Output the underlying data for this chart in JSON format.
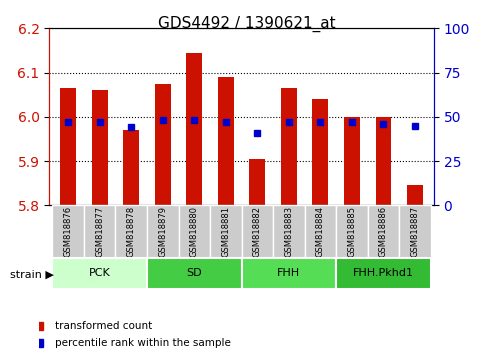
{
  "title": "GDS4492 / 1390621_at",
  "samples": [
    "GSM818876",
    "GSM818877",
    "GSM818878",
    "GSM818879",
    "GSM818880",
    "GSM818881",
    "GSM818882",
    "GSM818883",
    "GSM818884",
    "GSM818885",
    "GSM818886",
    "GSM818887"
  ],
  "transformed_counts": [
    6.065,
    6.06,
    5.97,
    6.075,
    6.145,
    6.09,
    5.905,
    6.065,
    6.04,
    6.0,
    6.0,
    5.845
  ],
  "percentile_ranks": [
    47,
    47,
    44,
    48,
    48,
    47,
    41,
    47,
    47,
    47,
    46,
    45
  ],
  "ylim_left": [
    5.8,
    6.2
  ],
  "ylim_right": [
    0,
    100
  ],
  "yticks_left": [
    5.8,
    5.9,
    6.0,
    6.1,
    6.2
  ],
  "yticks_right": [
    0,
    25,
    50,
    75,
    100
  ],
  "bar_color": "#cc1100",
  "dot_color": "#0000cc",
  "groups": [
    {
      "label": "PCK",
      "start": 0,
      "end": 3,
      "color": "#ccffcc"
    },
    {
      "label": "SD",
      "start": 3,
      "end": 6,
      "color": "#44cc44"
    },
    {
      "label": "FHH",
      "start": 6,
      "end": 9,
      "color": "#55dd55"
    },
    {
      "label": "FHH.Pkhd1",
      "start": 9,
      "end": 12,
      "color": "#33bb33"
    }
  ],
  "strain_label": "strain",
  "legend_bar_label": "transformed count",
  "legend_dot_label": "percentile rank within the sample",
  "grid_color": "#000000",
  "background_color": "#ffffff",
  "tick_area_color": "#cccccc"
}
